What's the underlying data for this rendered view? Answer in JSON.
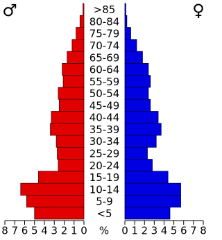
{
  "chart_data": {
    "type": "pyramid",
    "categories": [
      "<5",
      "5-9",
      "10-14",
      "15-19",
      "20-24",
      "25-29",
      "30-34",
      "35-39",
      "40-44",
      "45-49",
      "50-54",
      "55-59",
      "60-64",
      "65-69",
      "70-74",
      "75-79",
      "80-84",
      ">85"
    ],
    "series": [
      {
        "name": "♂",
        "color": "#e00000",
        "values": [
          5.0,
          5.8,
          6.4,
          4.6,
          2.6,
          2.7,
          2.8,
          3.4,
          3.3,
          2.5,
          2.6,
          2.1,
          2.2,
          1.7,
          1.2,
          0.8,
          0.4,
          0.1
        ]
      },
      {
        "name": "♀",
        "color": "#0000e0",
        "values": [
          4.6,
          5.7,
          5.7,
          4.4,
          2.8,
          2.3,
          3.2,
          3.7,
          3.4,
          2.6,
          2.4,
          2.6,
          2.4,
          1.8,
          1.2,
          0.6,
          0.2,
          0.1
        ]
      }
    ],
    "xlabel": "%",
    "xlim": [
      0,
      8
    ],
    "xticks": [
      0,
      1,
      2,
      3,
      4,
      5,
      6,
      7,
      8
    ]
  }
}
